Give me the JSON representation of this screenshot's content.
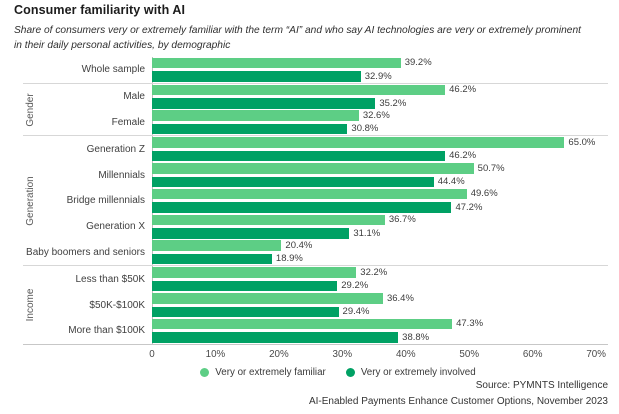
{
  "header": {
    "title": "Consumer familiarity with AI",
    "subtitle": "Share of consumers very or extremely familiar with the term “AI” and who say AI technologies are very or extremely prominent in their daily personal activities, by demographic"
  },
  "chart_data": {
    "type": "bar",
    "orientation": "horizontal",
    "unit": "%",
    "axis_max": 70,
    "grid": false,
    "x_ticks": [
      "0",
      "10%",
      "20%",
      "30%",
      "40%",
      "50%",
      "60%",
      "70%"
    ],
    "legend_position": "bottom-center",
    "legend": [
      {
        "label": "Very or extremely familiar",
        "color": "#5DCE85"
      },
      {
        "label": "Very or extremely involved",
        "color": "#00A164"
      }
    ],
    "series_keys": [
      "familiar",
      "involved"
    ],
    "groups": [
      {
        "label": "",
        "rows": [
          {
            "category": "Whole sample",
            "familiar": 39.2,
            "involved": 32.9
          }
        ]
      },
      {
        "label": "Gender",
        "rows": [
          {
            "category": "Male",
            "familiar": 46.2,
            "involved": 35.2
          },
          {
            "category": "Female",
            "familiar": 32.6,
            "involved": 30.8
          }
        ]
      },
      {
        "label": "Generation",
        "rows": [
          {
            "category": "Generation Z",
            "familiar": 65.0,
            "involved": 46.2
          },
          {
            "category": "Millennials",
            "familiar": 50.7,
            "involved": 44.4
          },
          {
            "category": "Bridge millennials",
            "familiar": 49.6,
            "involved": 47.2
          },
          {
            "category": "Generation X",
            "familiar": 36.7,
            "involved": 31.1
          },
          {
            "category": "Baby boomers and seniors",
            "familiar": 20.4,
            "involved": 18.9
          }
        ]
      },
      {
        "label": "Income",
        "rows": [
          {
            "category": "Less than $50K",
            "familiar": 32.2,
            "involved": 29.2
          },
          {
            "category": "$50K-$100K",
            "familiar": 36.4,
            "involved": 29.4
          },
          {
            "category": "More than $100K",
            "familiar": 47.3,
            "involved": 38.8
          }
        ]
      }
    ]
  },
  "footer": {
    "source": "Source: PYMNTS Intelligence",
    "citation": "AI-Enabled Payments Enhance Customer Options, November 2023"
  }
}
